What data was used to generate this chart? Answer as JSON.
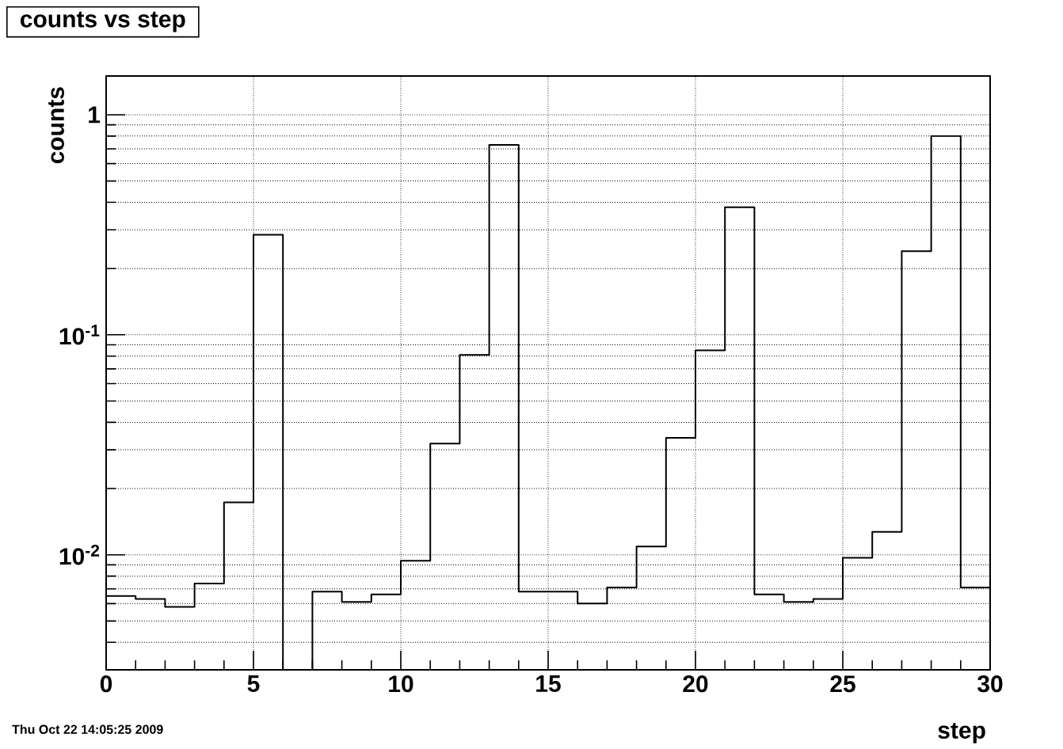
{
  "chart_data": {
    "type": "histogram",
    "title": "counts vs step",
    "xlabel": "step",
    "ylabel": "counts",
    "annotations": [
      "Thu Oct 22 14:05:25 2009"
    ],
    "bins": [
      0,
      1,
      2,
      3,
      4,
      5,
      6,
      7,
      8,
      9,
      10,
      11,
      12,
      13,
      14,
      15,
      16,
      17,
      18,
      19,
      20,
      21,
      22,
      23,
      24,
      25,
      26,
      27,
      28,
      29,
      30
    ],
    "values": [
      0.0065,
      0.0063,
      0.0058,
      0.0074,
      0.0173,
      0.285,
      null,
      0.0068,
      0.0061,
      0.0066,
      0.0094,
      0.032,
      0.081,
      0.73,
      0.0068,
      0.0068,
      0.006,
      0.0071,
      0.0109,
      0.034,
      0.085,
      0.38,
      0.0066,
      0.0061,
      0.0063,
      0.0097,
      0.0127,
      0.24,
      0.8,
      0.0071
    ],
    "color": "#000000",
    "xlim": [
      0,
      30
    ],
    "xticks": [
      0,
      5,
      10,
      15,
      20,
      25,
      30
    ],
    "ylim": [
      0.003,
      1.5
    ],
    "yticks": [
      {
        "value": 0.01,
        "label": "10$^{-2}$"
      },
      {
        "value": 0.1,
        "label": "10$^{-1}$"
      },
      1
    ],
    "log": "y",
    "grid": true
  }
}
